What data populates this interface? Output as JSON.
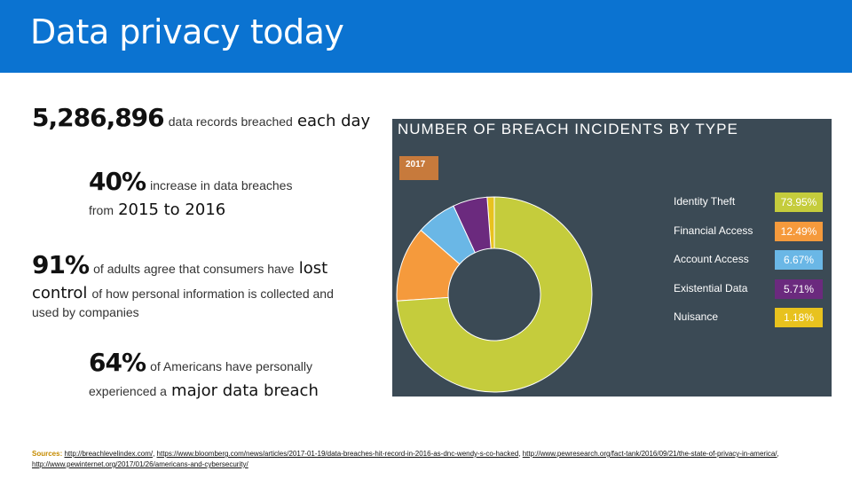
{
  "title": "Data privacy today",
  "stats": {
    "s1": {
      "big": "5,286,896",
      "text": "data records breached",
      "emph": "each day"
    },
    "s2": {
      "big": "40%",
      "text": "increase in data breaches",
      "from_text": "from",
      "emph": "2015 to 2016"
    },
    "s3": {
      "big": "91%",
      "text": "of adults agree that consumers have",
      "emph1": "lost",
      "emph2": "control",
      "text2": "of how personal information is collected and",
      "text3": "used by companies"
    },
    "s4": {
      "big": "64%",
      "text": "of Americans have personally",
      "text2": "experienced a",
      "emph": "major data breach"
    }
  },
  "chart_data": {
    "type": "pie",
    "title": "NUMBER OF BREACH INCIDENTS BY TYPE",
    "year": "2017",
    "categories": [
      "Identity Theft",
      "Financial Access",
      "Account Access",
      "Existential Data",
      "Nuisance"
    ],
    "values": [
      73.95,
      12.49,
      6.67,
      5.71,
      1.18
    ],
    "labels": [
      "73.95%",
      "12.49%",
      "6.67%",
      "5.71%",
      "1.18%"
    ],
    "colors": [
      "#c5cc3c",
      "#f59a3c",
      "#6ab7e6",
      "#6b2a7e",
      "#e8c21e"
    ]
  },
  "sources": {
    "label": "Sources:",
    "links": [
      "http://breachlevelindex.com/",
      "https://www.bloomberg.com/news/articles/2017-01-19/data-breaches-hit-record-in-2016-as-dnc-wendy-s-co-hacked",
      "http://www.pewresearch.org/fact-tank/2016/09/21/the-state-of-privacy-in-america/",
      "http://www.pewinternet.org/2017/01/26/americans-and-cybersecurity/"
    ]
  }
}
